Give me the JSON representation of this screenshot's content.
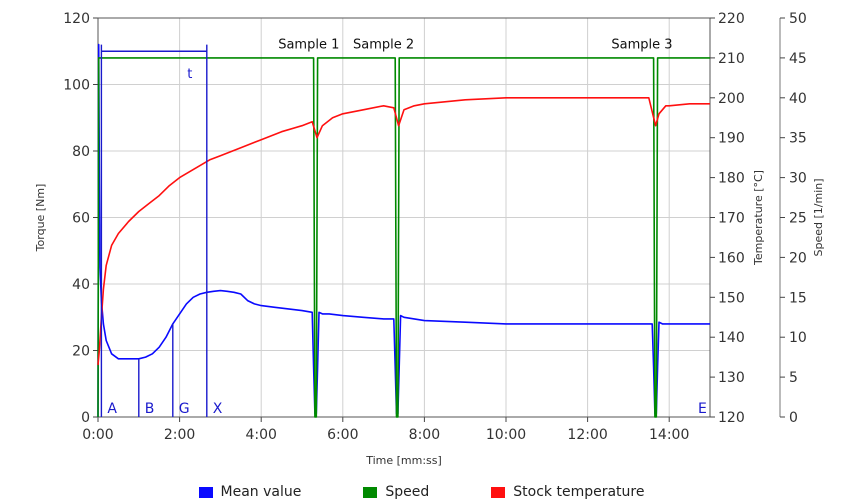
{
  "chart_data": {
    "type": "line",
    "xlabel": "Time [mm:ss]",
    "x_ticks": [
      "0:00",
      "2:00",
      "4:00",
      "6:00",
      "8:00",
      "10:00",
      "12:00",
      "14:00"
    ],
    "xlim_seconds": [
      0,
      900
    ],
    "y_axes": [
      {
        "label": "Torque [Nm]",
        "ylim": [
          0,
          120
        ],
        "ticks": [
          "0",
          "20",
          "40",
          "60",
          "80",
          "100",
          "120"
        ]
      },
      {
        "label": "Temperature [°C]",
        "ylim": [
          120,
          220
        ],
        "ticks": [
          "120",
          "130",
          "140",
          "150",
          "160",
          "170",
          "180",
          "190",
          "200",
          "210",
          "220"
        ]
      },
      {
        "label": "Speed [1/min]",
        "ylim": [
          0,
          50
        ],
        "ticks": [
          "0",
          "5",
          "10",
          "15",
          "20",
          "25",
          "30",
          "35",
          "40",
          "45",
          "50"
        ]
      }
    ],
    "grid": true,
    "legend_position": "bottom",
    "series": [
      {
        "name": "Mean value",
        "axis": "Torque [Nm]",
        "color": "#0a0aff",
        "x": [
          "0:00",
          "0:01",
          "0:02",
          "0:03",
          "0:05",
          "0:08",
          "0:12",
          "0:20",
          "0:30",
          "0:40",
          "0:50",
          "1:00",
          "1:10",
          "1:20",
          "1:30",
          "1:40",
          "1:50",
          "2:00",
          "2:10",
          "2:20",
          "2:30",
          "2:40",
          "2:50",
          "3:00",
          "3:10",
          "3:20",
          "3:30",
          "3:40",
          "3:50",
          "4:00",
          "4:20",
          "4:40",
          "5:00",
          "5:15",
          "5:17",
          "5:19",
          "5:21",
          "5:23",
          "5:25",
          "5:30",
          "5:40",
          "6:00",
          "6:30",
          "7:00",
          "7:10",
          "7:15",
          "7:17",
          "7:19",
          "7:21",
          "7:23",
          "7:25",
          "7:30",
          "8:00",
          "9:00",
          "10:00",
          "11:00",
          "12:00",
          "13:00",
          "13:30",
          "13:35",
          "13:37",
          "13:39",
          "13:41",
          "13:43",
          "13:45",
          "13:50",
          "14:00",
          "14:30",
          "15:00"
        ],
        "y": [
          0,
          112,
          70,
          45,
          35,
          28,
          23,
          19,
          17.5,
          17.5,
          17.5,
          17.5,
          18,
          19,
          21,
          24,
          28,
          31,
          34,
          36,
          37,
          37.5,
          37.8,
          38,
          37.8,
          37.5,
          37,
          35,
          34,
          33.5,
          33,
          32.5,
          32,
          31.5,
          15,
          1,
          1,
          15,
          31.5,
          31,
          31,
          30.5,
          30,
          29.5,
          29.5,
          29.5,
          15,
          1,
          1,
          15,
          30.5,
          30,
          29,
          28.5,
          28,
          28,
          28,
          28,
          28,
          28,
          15,
          1,
          1,
          15,
          28.5,
          28,
          28,
          28,
          28
        ]
      },
      {
        "name": "Speed",
        "axis": "Speed [1/min]",
        "color": "#008a00",
        "x": [
          "0:00",
          "0:01",
          "0:02",
          "0:03",
          "5:15",
          "5:17",
          "5:19",
          "5:21",
          "5:23",
          "5:25",
          "7:10",
          "7:15",
          "7:17",
          "7:19",
          "7:21",
          "7:23",
          "7:25",
          "13:30",
          "13:35",
          "13:37",
          "13:39",
          "13:41",
          "13:43",
          "13:45",
          "15:00"
        ],
        "y": [
          0,
          45,
          45,
          45,
          45,
          45,
          0,
          0,
          45,
          45,
          45,
          45,
          45,
          0,
          0,
          45,
          45,
          45,
          45,
          45,
          0,
          0,
          45,
          45,
          45
        ]
      },
      {
        "name": "Stock temperature",
        "axis": "Temperature [°C]",
        "color": "#ff1010",
        "x": [
          "0:00",
          "0:02",
          "0:05",
          "0:08",
          "0:12",
          "0:20",
          "0:30",
          "0:45",
          "1:00",
          "1:15",
          "1:30",
          "1:45",
          "2:00",
          "2:15",
          "2:30",
          "2:45",
          "3:00",
          "3:30",
          "4:00",
          "4:30",
          "5:00",
          "5:15",
          "5:22",
          "5:30",
          "5:45",
          "6:00",
          "6:30",
          "7:00",
          "7:15",
          "7:22",
          "7:30",
          "7:45",
          "8:00",
          "9:00",
          "10:00",
          "11:00",
          "12:00",
          "13:00",
          "13:30",
          "13:40",
          "13:45",
          "13:55",
          "14:00",
          "14:30",
          "15:00"
        ],
        "y": [
          133,
          137,
          145,
          152,
          158,
          163,
          166,
          169,
          171.5,
          173.5,
          175.5,
          178,
          180,
          181.5,
          183,
          184.5,
          185.5,
          187.5,
          189.5,
          191.5,
          193,
          194,
          190,
          193,
          195,
          196,
          197,
          198,
          197.5,
          193,
          197,
          198,
          198.5,
          199.5,
          200,
          200,
          200,
          200,
          200,
          193,
          196,
          198,
          198,
          198.5,
          198.5
        ]
      }
    ],
    "annotations": [
      {
        "text": "Sample 1",
        "x": "5:10",
        "y_torque": 112
      },
      {
        "text": "Sample 2",
        "x": "7:00",
        "y_torque": 112
      },
      {
        "text": "Sample 3",
        "x": "13:20",
        "y_torque": 112
      },
      {
        "text": "t",
        "x": "2:15",
        "y_torque": 105
      }
    ],
    "markers": [
      {
        "label": "A",
        "x": "0:05",
        "line_top_torque": 112
      },
      {
        "label": "B",
        "x": "1:00",
        "line_top_torque": 17.5
      },
      {
        "label": "G",
        "x": "1:50",
        "line_top_torque": 28
      },
      {
        "label": "X",
        "x": "2:40",
        "line_top_torque": 112
      },
      {
        "label": "E",
        "x": "15:00",
        "line_top_torque": null
      }
    ],
    "interval": {
      "label": "t",
      "from": "0:05",
      "to": "2:40",
      "y_torque": 110
    }
  }
}
